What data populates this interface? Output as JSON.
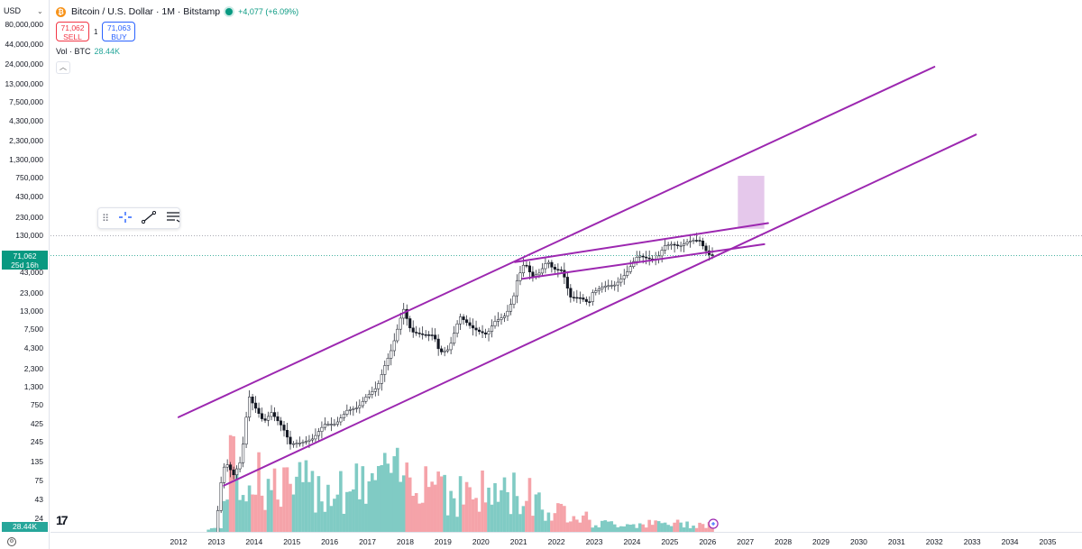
{
  "symbol": {
    "title": "Bitcoin / U.S. Dollar · 1M · Bitstamp",
    "change": "+4,077 (+6.09%)",
    "sell_price": "71,062",
    "sell_label": "SELL",
    "spread": "1",
    "buy_price": "71,063",
    "buy_label": "BUY"
  },
  "volume": {
    "label": "Vol · BTC",
    "value": "28.44K"
  },
  "price_axis": {
    "currency": "USD",
    "ticks": [
      "80,000,000",
      "44,000,000",
      "24,000,000",
      "13,000,000",
      "7,500,000",
      "4,300,000",
      "2,300,000",
      "1,300,000",
      "750,000",
      "430,000",
      "230,000",
      "130,000",
      "43,000",
      "23,000",
      "13,000",
      "7,500",
      "4,300",
      "2,300",
      "1,300",
      "750",
      "425",
      "245",
      "135",
      "75",
      "43",
      "24"
    ],
    "current_price": "71,062",
    "countdown": "25d 16h",
    "volume_tag": "28.44K"
  },
  "time_axis": {
    "years": [
      "2012",
      "2013",
      "2014",
      "2015",
      "2016",
      "2017",
      "2018",
      "2019",
      "2020",
      "2021",
      "2022",
      "2023",
      "2024",
      "2025",
      "2026",
      "2027",
      "2028",
      "2029",
      "2030",
      "2031",
      "2032",
      "2033",
      "2034",
      "2035"
    ]
  },
  "colors": {
    "up": "#089981",
    "down": "#f23645",
    "vol_up": "#80cbc4",
    "vol_down": "#f5a3a9",
    "trendline": "#9c27b0",
    "target_box": "#e1bee7"
  },
  "icons": {
    "drag": "drag-handle-icon",
    "crosshair": "crosshair-icon",
    "trendline": "trendline-icon",
    "settings": "line-settings-icon",
    "logo": "tradingview-logo-icon"
  },
  "chart_data": {
    "type": "candlestick",
    "scale": "log",
    "title": "",
    "xlabel": "",
    "ylabel": "",
    "ylim": [
      20,
      80000000
    ],
    "xlim": [
      2012,
      2035.5
    ],
    "current_price": 71062,
    "price_series": [
      {
        "t": 2012.9,
        "v": 12
      },
      {
        "t": 2013.0,
        "v": 13
      },
      {
        "t": 2013.2,
        "v": 100
      },
      {
        "t": 2013.3,
        "v": 130
      },
      {
        "t": 2013.5,
        "v": 90
      },
      {
        "t": 2013.7,
        "v": 140
      },
      {
        "t": 2013.9,
        "v": 1000
      },
      {
        "t": 2014.0,
        "v": 800
      },
      {
        "t": 2014.3,
        "v": 450
      },
      {
        "t": 2014.5,
        "v": 600
      },
      {
        "t": 2014.8,
        "v": 380
      },
      {
        "t": 2015.0,
        "v": 230
      },
      {
        "t": 2015.3,
        "v": 240
      },
      {
        "t": 2015.6,
        "v": 270
      },
      {
        "t": 2015.9,
        "v": 420
      },
      {
        "t": 2016.2,
        "v": 420
      },
      {
        "t": 2016.5,
        "v": 640
      },
      {
        "t": 2016.8,
        "v": 700
      },
      {
        "t": 2017.0,
        "v": 960
      },
      {
        "t": 2017.3,
        "v": 1300
      },
      {
        "t": 2017.5,
        "v": 2500
      },
      {
        "t": 2017.7,
        "v": 4300
      },
      {
        "t": 2017.9,
        "v": 10000
      },
      {
        "t": 2018.0,
        "v": 13800
      },
      {
        "t": 2018.2,
        "v": 7000
      },
      {
        "t": 2018.5,
        "v": 6400
      },
      {
        "t": 2018.8,
        "v": 6300
      },
      {
        "t": 2018.95,
        "v": 3700
      },
      {
        "t": 2019.2,
        "v": 4100
      },
      {
        "t": 2019.4,
        "v": 8500
      },
      {
        "t": 2019.5,
        "v": 11000
      },
      {
        "t": 2019.8,
        "v": 8000
      },
      {
        "t": 2019.95,
        "v": 7200
      },
      {
        "t": 2020.2,
        "v": 6400
      },
      {
        "t": 2020.4,
        "v": 9500
      },
      {
        "t": 2020.7,
        "v": 11500
      },
      {
        "t": 2020.9,
        "v": 19000
      },
      {
        "t": 2021.0,
        "v": 33000
      },
      {
        "t": 2021.2,
        "v": 58000
      },
      {
        "t": 2021.4,
        "v": 37000
      },
      {
        "t": 2021.6,
        "v": 42000
      },
      {
        "t": 2021.8,
        "v": 61000
      },
      {
        "t": 2021.95,
        "v": 47000
      },
      {
        "t": 2022.2,
        "v": 45000
      },
      {
        "t": 2022.4,
        "v": 20000
      },
      {
        "t": 2022.7,
        "v": 19500
      },
      {
        "t": 2022.9,
        "v": 16500
      },
      {
        "t": 2023.0,
        "v": 23000
      },
      {
        "t": 2023.3,
        "v": 28000
      },
      {
        "t": 2023.6,
        "v": 29000
      },
      {
        "t": 2023.9,
        "v": 42000
      },
      {
        "t": 2024.1,
        "v": 61000
      },
      {
        "t": 2024.2,
        "v": 71000
      },
      {
        "t": 2024.5,
        "v": 64000
      },
      {
        "t": 2024.7,
        "v": 63000
      },
      {
        "t": 2024.9,
        "v": 96000
      },
      {
        "t": 2025.1,
        "v": 100000
      },
      {
        "t": 2025.3,
        "v": 94000
      },
      {
        "t": 2025.5,
        "v": 107000
      },
      {
        "t": 2025.7,
        "v": 114000
      },
      {
        "t": 2025.85,
        "v": 110000
      },
      {
        "t": 2025.95,
        "v": 88000
      },
      {
        "t": 2026.1,
        "v": 71062
      }
    ],
    "trendlines": [
      {
        "name": "channel-top",
        "x1": 2012.0,
        "y1": 520,
        "x2": 2032.0,
        "y2": 22000000
      },
      {
        "name": "channel-bottom",
        "x1": 2013.2,
        "y1": 65,
        "x2": 2033.1,
        "y2": 2800000
      },
      {
        "name": "wedge-top",
        "x1": 2020.9,
        "y1": 58000,
        "x2": 2027.6,
        "y2": 190000
      },
      {
        "name": "wedge-bottom",
        "x1": 2021.1,
        "y1": 35000,
        "x2": 2027.5,
        "y2": 100000
      }
    ],
    "target_zone": {
      "x1": 2026.8,
      "x2": 2027.5,
      "y1": 160000,
      "y2": 800000
    }
  }
}
